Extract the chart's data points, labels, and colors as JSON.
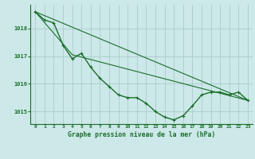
{
  "title": "Graphe pression niveau de la mer (hPa)",
  "bg_color": "#cce8e8",
  "grid_color": "#aacccc",
  "line_color": "#1a6e2a",
  "xlim": [
    -0.5,
    23.5
  ],
  "ylim": [
    1014.55,
    1018.85
  ],
  "yticks": [
    1015,
    1016,
    1017,
    1018
  ],
  "xticks": [
    0,
    1,
    2,
    3,
    4,
    5,
    6,
    7,
    8,
    9,
    10,
    11,
    12,
    13,
    14,
    15,
    16,
    17,
    18,
    19,
    20,
    21,
    22,
    23
  ],
  "series1": [
    1018.6,
    1018.3,
    1018.2,
    1017.4,
    1016.9,
    1017.1,
    1016.6,
    1016.2,
    1015.9,
    1015.6,
    1015.5,
    1015.5,
    1015.3,
    1015.0,
    1014.8,
    1014.7,
    1014.85,
    1015.2,
    1015.6,
    1015.7,
    1015.7,
    1015.6,
    1015.7,
    1015.4
  ],
  "line2_x": [
    0,
    23
  ],
  "line2_y": [
    1018.6,
    1015.4
  ],
  "line3_x": [
    0,
    4,
    23
  ],
  "line3_y": [
    1018.6,
    1017.05,
    1015.4
  ]
}
